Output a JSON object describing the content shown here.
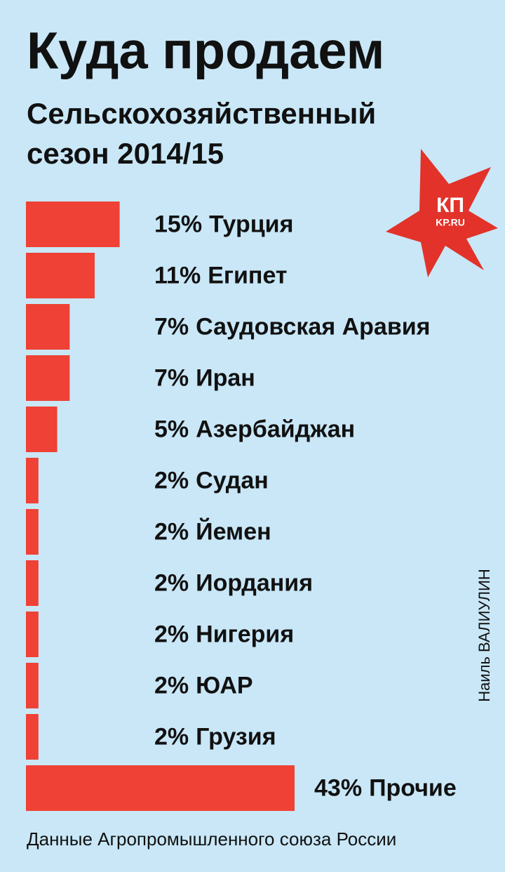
{
  "chart_data": {
    "type": "bar",
    "orientation": "horizontal",
    "title": "Куда продаем",
    "subtitle": [
      "Сельскохозяйственный",
      "сезон 2014/15"
    ],
    "categories": [
      "Турция",
      "Египет",
      "Саудовская Аравия",
      "Иран",
      "Азербайджан",
      "Судан",
      "Йемен",
      "Иордания",
      "Нигерия",
      "ЮАР",
      "Грузия",
      "Прочие"
    ],
    "values": [
      15,
      11,
      7,
      7,
      5,
      2,
      2,
      2,
      2,
      2,
      2,
      43
    ],
    "value_labels": [
      "15%",
      "11%",
      "7%",
      "7%",
      "5%",
      "2%",
      "2%",
      "2%",
      "2%",
      "2%",
      "2%",
      "43%"
    ],
    "color": "#ef4136",
    "source": "Данные Агропромышленного союза России",
    "author": "Наиль ВАЛИУЛИН",
    "logo": {
      "main": "КП",
      "site": "KP.RU"
    }
  }
}
